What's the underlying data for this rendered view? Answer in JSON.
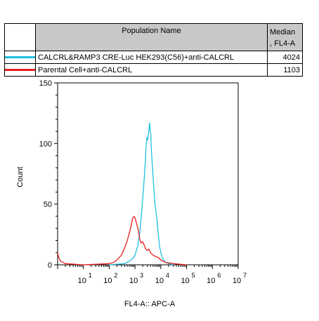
{
  "legend": {
    "header_name": "Population Name",
    "header_stat": "Median\n, FL4-A",
    "rows": [
      {
        "name": "CALCRL&RAMP3 CRE-Luc HEK293(C56)+anti-CALCRL",
        "value": "4024",
        "color": "#1ec0e0"
      },
      {
        "name": "Parental Cell+anti-CALCRL",
        "value": "1103",
        "color": "#e82020"
      }
    ]
  },
  "chart_data": {
    "type": "area",
    "xlabel": "FL4-A:: APC-A",
    "ylabel": "Count",
    "x_scale": "log",
    "xlim": [
      1,
      10000000
    ],
    "ylim": [
      0,
      150
    ],
    "y_ticks": [
      "0",
      "50",
      "100",
      "150"
    ],
    "x_tick_labels": [
      "10",
      "10",
      "10",
      "10",
      "10",
      "10",
      "10"
    ],
    "x_tick_exponents": [
      "1",
      "2",
      "3",
      "4",
      "5",
      "6",
      "7"
    ],
    "grid": false,
    "series": [
      {
        "color": "#1ec0e0",
        "x": [
          100,
          200,
          400,
          600,
          800,
          1000,
          1250,
          1500,
          1750,
          2000,
          2250,
          2500,
          2700,
          2900,
          3100,
          3300,
          3500,
          3700,
          3900,
          4100,
          4300,
          4600,
          5000,
          5500,
          6000,
          7000,
          8000,
          9000,
          10000,
          12000,
          15000,
          20000,
          30000
        ],
        "y": [
          0,
          0.5,
          1,
          3,
          5,
          8,
          15,
          25,
          40,
          55,
          70,
          85,
          99,
          105,
          103,
          108,
          112,
          117,
          110,
          108,
          95,
          85,
          73,
          60,
          50,
          38,
          25,
          15,
          10,
          5,
          2,
          1,
          0
        ]
      },
      {
        "color": "#e82020",
        "x": [
          1,
          1.1,
          1.3,
          2,
          10,
          100,
          150,
          200,
          300,
          400,
          500,
          600,
          700,
          800,
          900,
          1000,
          1150,
          1300,
          1500,
          1700,
          2000,
          2300,
          2600,
          3000,
          3500,
          4000,
          5000,
          6000,
          8000,
          10000,
          15000,
          30000,
          100000
        ],
        "y": [
          10,
          6,
          3,
          1,
          0,
          1,
          2,
          4,
          8,
          14,
          20,
          26,
          32,
          38,
          40,
          39,
          34,
          30,
          22,
          18,
          19,
          16,
          13,
          12,
          13,
          10,
          8,
          7,
          6,
          4,
          2,
          1,
          0
        ]
      }
    ]
  }
}
